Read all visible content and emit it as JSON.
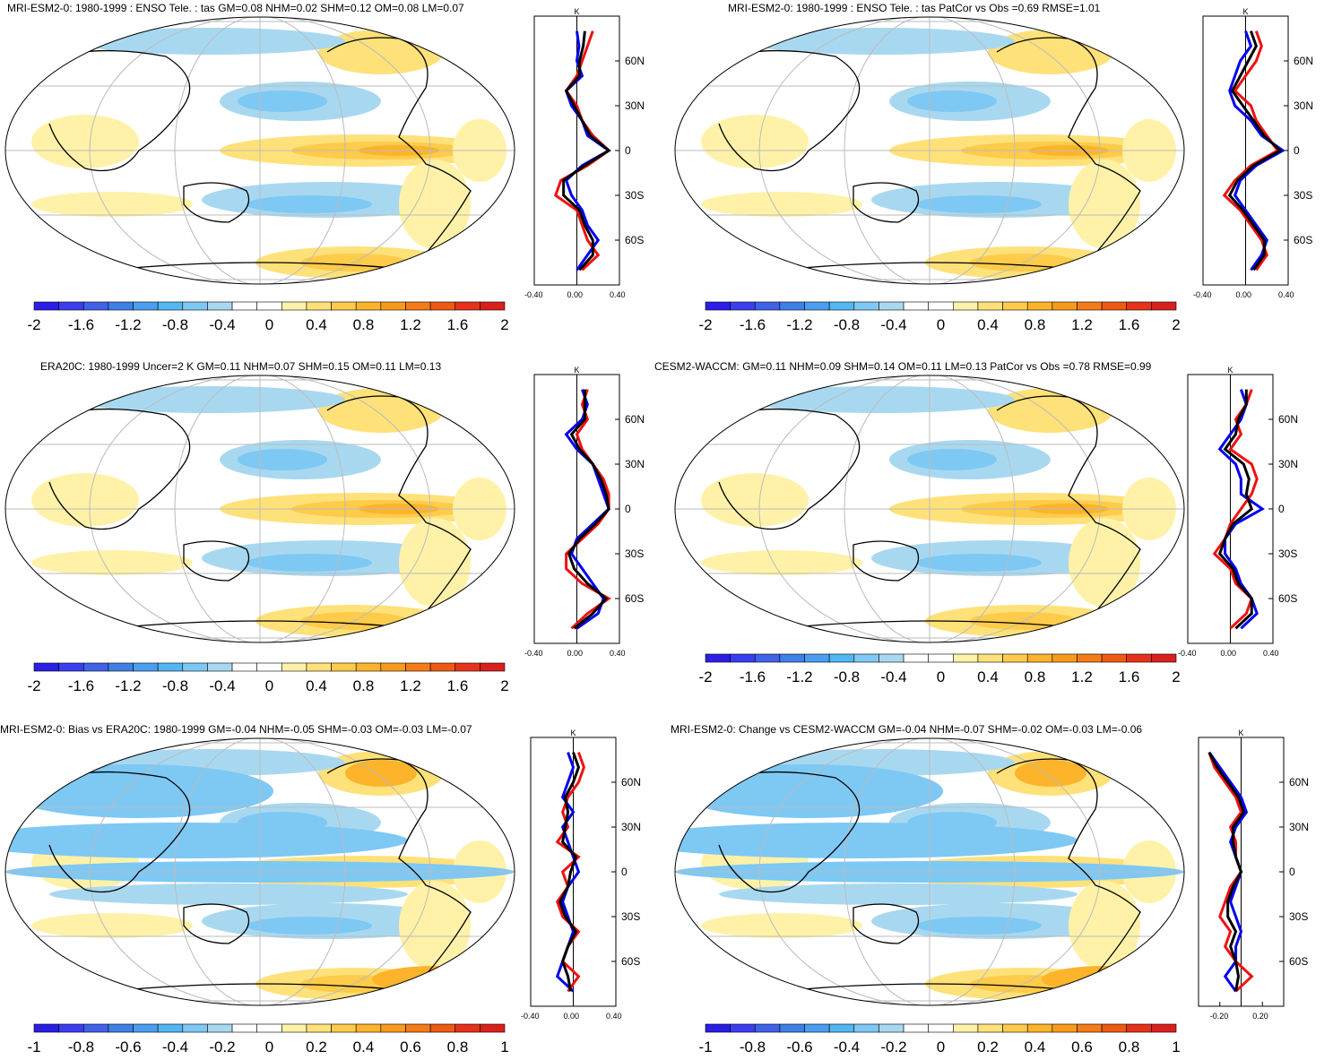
{
  "panels": [
    {
      "title": "MRI-ESM2-0: 1980-1999 : ENSO Tele. : tas GM=0.08 NHM=0.02 SHM=0.12 OM=0.08 LM=0.07",
      "colorbar": {
        "labels": [
          "-2",
          "-1.6",
          "-1.2",
          "-0.8",
          "-0.4",
          "0",
          "0.4",
          "0.8",
          "1.2",
          "1.6",
          "2"
        ]
      },
      "zonal": {
        "unit": "K",
        "lat_labels": [
          "60N",
          "30N",
          "0",
          "30S",
          "60S"
        ],
        "x_labels": [
          "-0.40",
          "0.00",
          "0.40"
        ]
      }
    },
    {
      "title": "MRI-ESM2-0: 1980-1999 : ENSO Tele. : tas PatCor vs Obs =0.69 RMSE=1.01",
      "colorbar": {
        "labels": [
          "-2",
          "-1.6",
          "-1.2",
          "-0.8",
          "-0.4",
          "0",
          "0.4",
          "0.8",
          "1.2",
          "1.6",
          "2"
        ]
      },
      "zonal": {
        "unit": "K",
        "lat_labels": [
          "60N",
          "30N",
          "0",
          "30S",
          "60S"
        ],
        "x_labels": [
          "-0.40",
          "0.00",
          "0.40"
        ]
      }
    },
    {
      "title": "ERA20C: 1980-1999 Uncer=2 K GM=0.11 NHM=0.07 SHM=0.15 OM=0.11 LM=0.13",
      "colorbar": {
        "labels": [
          "-2",
          "-1.6",
          "-1.2",
          "-0.8",
          "-0.4",
          "0",
          "0.4",
          "0.8",
          "1.2",
          "1.6",
          "2"
        ]
      },
      "zonal": {
        "unit": "K",
        "lat_labels": [
          "60N",
          "30N",
          "0",
          "30S",
          "60S"
        ],
        "x_labels": [
          "-0.40",
          "0.00",
          "0.40"
        ]
      }
    },
    {
      "title": "CESM2-WACCM: GM=0.11 NHM=0.09 SHM=0.14 OM=0.11 LM=0.13 PatCor vs Obs =0.78 RMSE=0.99",
      "colorbar": {
        "labels": [
          "-2",
          "-1.6",
          "-1.2",
          "-0.8",
          "-0.4",
          "0",
          "0.4",
          "0.8",
          "1.2",
          "1.6",
          "2"
        ]
      },
      "zonal": {
        "unit": "K",
        "lat_labels": [
          "60N",
          "30N",
          "0",
          "30S",
          "60S"
        ],
        "x_labels": [
          "-0.40",
          "0.00",
          "0.40"
        ]
      }
    },
    {
      "title": "MRI-ESM2-0: Bias vs ERA20C: 1980-1999 GM=-0.04 NHM=-0.05 SHM=-0.03 OM=-0.03 LM=-0.07",
      "colorbar": {
        "labels": [
          "-1",
          "-0.8",
          "-0.6",
          "-0.4",
          "-0.2",
          "0",
          "0.2",
          "0.4",
          "0.6",
          "0.8",
          "1"
        ]
      },
      "zonal": {
        "unit": "K",
        "lat_labels": [
          "60N",
          "30N",
          "0",
          "30S",
          "60S"
        ],
        "x_labels": [
          "-0.40",
          "0.00",
          "0.40"
        ]
      }
    },
    {
      "title": "MRI-ESM2-0: Change vs CESM2-WACCM GM=-0.04 NHM=-0.07 SHM=-0.02 OM=-0.03 LM=-0.06",
      "colorbar": {
        "labels": [
          "-1",
          "-0.8",
          "-0.6",
          "-0.4",
          "-0.2",
          "0",
          "0.2",
          "0.4",
          "0.6",
          "0.8",
          "1"
        ]
      },
      "zonal": {
        "unit": "K",
        "lat_labels": [
          "60N",
          "30N",
          "0",
          "30S",
          "60S"
        ],
        "x_labels": [
          "-0.20",
          "0.20"
        ]
      }
    }
  ],
  "colors": {
    "palette": [
      "#2b1ee6",
      "#3a3ef0",
      "#3f62e8",
      "#3e80e6",
      "#4a9ef0",
      "#52b6f2",
      "#7ec8f4",
      "#a8d8f0",
      "#ffffff",
      "#ffffff",
      "#fff2a8",
      "#ffe17a",
      "#fecb4a",
      "#fdb32a",
      "#f99a1c",
      "#f57c18",
      "#ee5a14",
      "#e6321a",
      "#d9201c"
    ],
    "model_line": "#0000ee",
    "obs_line": "#ee1111",
    "mean_line": "#000000"
  },
  "chart_data": [
    {
      "type": "heatmap",
      "title": "MRI-ESM2-0: 1980-1999 : ENSO Tele. : tas GM=0.08 NHM=0.02 SHM=0.12 OM=0.08 LM=0.07",
      "colorbar_range": [
        -2,
        2
      ],
      "zonal_mean_xlim": [
        -0.4,
        0.4
      ],
      "series": [
        {
          "name": "model",
          "lat": [
            80,
            70,
            60,
            50,
            40,
            30,
            20,
            10,
            0,
            -10,
            -20,
            -30,
            -40,
            -50,
            -60,
            -70,
            -80
          ],
          "values": [
            0.0,
            0.02,
            0.0,
            0.05,
            -0.1,
            -0.05,
            0.05,
            0.1,
            0.3,
            0.05,
            -0.1,
            -0.05,
            0.05,
            0.1,
            0.2,
            0.1,
            0.0
          ]
        },
        {
          "name": "obs",
          "lat": [
            80,
            70,
            60,
            50,
            40,
            30,
            20,
            10,
            0,
            -10,
            -20,
            -30,
            -40,
            -50,
            -60,
            -70,
            -80
          ],
          "values": [
            0.15,
            0.1,
            0.05,
            0.0,
            -0.1,
            0.0,
            0.05,
            0.15,
            0.3,
            0.1,
            -0.15,
            -0.2,
            0.0,
            0.05,
            0.1,
            0.2,
            0.05
          ]
        }
      ]
    },
    {
      "type": "heatmap",
      "title": "MRI-ESM2-0: 1980-1999 : ENSO Tele. : tas PatCor vs Obs =0.69 RMSE=1.01",
      "colorbar_range": [
        -2,
        2
      ],
      "zonal_mean_xlim": [
        -0.4,
        0.4
      ],
      "series": [
        {
          "name": "model",
          "lat": [
            80,
            70,
            60,
            50,
            40,
            30,
            20,
            10,
            0,
            -10,
            -20,
            -30,
            -40,
            -50,
            -60,
            -70,
            -80
          ],
          "values": [
            0.0,
            0.05,
            -0.05,
            -0.1,
            -0.15,
            -0.1,
            0.05,
            0.15,
            0.35,
            0.1,
            -0.05,
            -0.1,
            0.0,
            0.1,
            0.2,
            0.15,
            0.05
          ]
        },
        {
          "name": "obs",
          "lat": [
            80,
            70,
            60,
            50,
            40,
            30,
            20,
            10,
            0,
            -10,
            -20,
            -30,
            -40,
            -50,
            -60,
            -70,
            -80
          ],
          "values": [
            0.1,
            0.15,
            0.1,
            0.0,
            -0.1,
            0.05,
            0.1,
            0.2,
            0.3,
            0.05,
            -0.1,
            -0.2,
            -0.05,
            0.05,
            0.15,
            0.2,
            0.1
          ]
        }
      ]
    },
    {
      "type": "heatmap",
      "title": "ERA20C: 1980-1999 Uncer=2 K GM=0.11 NHM=0.07 SHM=0.15 OM=0.11 LM=0.13",
      "colorbar_range": [
        -2,
        2
      ],
      "zonal_mean_xlim": [
        -0.4,
        0.4
      ],
      "series": [
        {
          "name": "model",
          "lat": [
            80,
            70,
            60,
            50,
            40,
            30,
            20,
            10,
            0,
            -10,
            -20,
            -30,
            -40,
            -50,
            -60,
            -70,
            -80
          ],
          "values": [
            0.05,
            0.1,
            0.05,
            -0.1,
            0.0,
            0.15,
            0.2,
            0.25,
            0.3,
            0.15,
            0.0,
            -0.05,
            0.05,
            0.15,
            0.25,
            0.2,
            0.0
          ]
        },
        {
          "name": "obs",
          "lat": [
            80,
            70,
            60,
            50,
            40,
            30,
            20,
            10,
            0,
            -10,
            -20,
            -30,
            -40,
            -50,
            -60,
            -70,
            -80
          ],
          "values": [
            0.1,
            0.05,
            0.1,
            0.0,
            0.05,
            0.15,
            0.25,
            0.3,
            0.3,
            0.2,
            0.05,
            -0.1,
            -0.1,
            0.05,
            0.3,
            0.1,
            -0.05
          ]
        }
      ]
    },
    {
      "type": "heatmap",
      "title": "CESM2-WACCM: GM=0.11 NHM=0.09 SHM=0.14 OM=0.11 LM=0.13 PatCor vs Obs =0.78 RMSE=0.99",
      "colorbar_range": [
        -2,
        2
      ],
      "zonal_mean_xlim": [
        -0.4,
        0.4
      ],
      "series": [
        {
          "name": "model",
          "lat": [
            80,
            70,
            60,
            50,
            40,
            30,
            20,
            10,
            0,
            -10,
            -20,
            -30,
            -40,
            -50,
            -60,
            -70,
            -80
          ],
          "values": [
            0.1,
            0.15,
            0.1,
            0.0,
            -0.1,
            0.05,
            0.1,
            0.1,
            0.3,
            0.05,
            -0.05,
            -0.05,
            0.05,
            0.1,
            0.2,
            0.25,
            0.1
          ]
        },
        {
          "name": "obs",
          "lat": [
            80,
            70,
            60,
            50,
            40,
            30,
            20,
            10,
            0,
            -10,
            -20,
            -30,
            -40,
            -50,
            -60,
            -70,
            -80
          ],
          "values": [
            0.2,
            0.15,
            0.05,
            0.1,
            0.0,
            0.2,
            0.25,
            0.2,
            0.1,
            0.0,
            -0.05,
            -0.15,
            0.0,
            0.05,
            0.2,
            0.15,
            0.0
          ]
        }
      ]
    },
    {
      "type": "heatmap",
      "title": "MRI-ESM2-0: Bias vs ERA20C: 1980-1999 GM=-0.04 NHM=-0.05 SHM=-0.03 OM=-0.03 LM=-0.07",
      "colorbar_range": [
        -1,
        1
      ],
      "zonal_mean_xlim": [
        -0.4,
        0.4
      ],
      "series": [
        {
          "name": "model",
          "lat": [
            80,
            70,
            60,
            50,
            40,
            30,
            20,
            10,
            0,
            -10,
            -20,
            -30,
            -40,
            -50,
            -60,
            -70,
            -80
          ],
          "values": [
            -0.05,
            0.0,
            -0.05,
            -0.1,
            0.0,
            -0.1,
            -0.05,
            0.0,
            0.05,
            -0.05,
            -0.1,
            -0.05,
            0.0,
            -0.05,
            -0.1,
            -0.15,
            0.0
          ]
        },
        {
          "name": "obs",
          "lat": [
            80,
            70,
            60,
            50,
            40,
            30,
            20,
            10,
            0,
            -10,
            -20,
            -30,
            -40,
            -50,
            -60,
            -70,
            -80
          ],
          "values": [
            0.05,
            0.1,
            0.05,
            -0.05,
            -0.1,
            -0.05,
            -0.15,
            0.05,
            -0.1,
            -0.05,
            -0.15,
            -0.1,
            0.05,
            -0.05,
            -0.1,
            0.05,
            -0.05
          ]
        }
      ]
    },
    {
      "type": "heatmap",
      "title": "MRI-ESM2-0: Change vs CESM2-WACCM GM=-0.04 NHM=-0.07 SHM=-0.02 OM=-0.03 LM=-0.06",
      "colorbar_range": [
        -1,
        1
      ],
      "zonal_mean_xlim": [
        -0.4,
        0.4
      ],
      "series": [
        {
          "name": "model",
          "lat": [
            80,
            70,
            60,
            50,
            40,
            30,
            20,
            10,
            0,
            -10,
            -20,
            -30,
            -40,
            -50,
            -60,
            -70,
            -80
          ],
          "values": [
            -0.3,
            -0.2,
            -0.1,
            0.0,
            0.05,
            -0.05,
            -0.1,
            -0.05,
            0.0,
            -0.05,
            -0.1,
            -0.05,
            0.0,
            -0.05,
            -0.05,
            -0.15,
            -0.05
          ]
        },
        {
          "name": "obs",
          "lat": [
            80,
            70,
            60,
            50,
            40,
            30,
            20,
            10,
            0,
            -10,
            -20,
            -30,
            -40,
            -50,
            -60,
            -70,
            -80
          ],
          "values": [
            -0.3,
            -0.25,
            -0.15,
            -0.05,
            0.0,
            -0.1,
            -0.05,
            -0.05,
            0.0,
            -0.1,
            -0.15,
            -0.2,
            -0.1,
            -0.15,
            -0.05,
            0.1,
            -0.05
          ]
        }
      ]
    }
  ]
}
